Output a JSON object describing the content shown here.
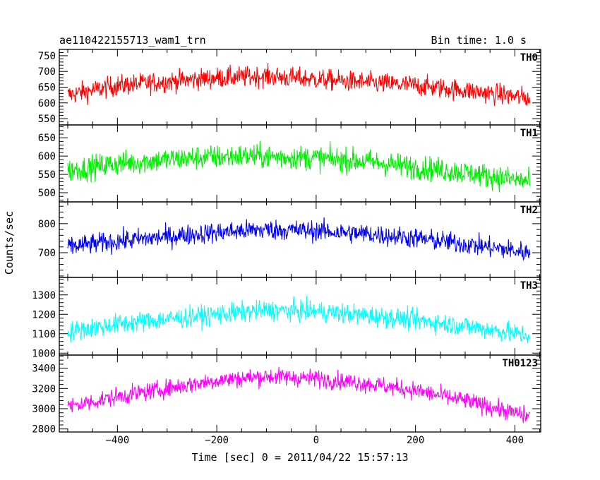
{
  "header": {
    "left": "ae110422155713_wam1_trn",
    "right": "Bin time: 1.0 s"
  },
  "axes": {
    "xlabel": "Time [sec] 0 = 2011/04/22 15:57:13",
    "ylabel": "Counts/sec"
  },
  "chart_data": {
    "type": "line",
    "x_range": [
      -500,
      430
    ],
    "xlim": [
      -517,
      452
    ],
    "x_ticks": [
      -400,
      -200,
      0,
      200,
      400
    ],
    "x_tick_labels": [
      "−400",
      "−200",
      "0",
      "200",
      "400"
    ],
    "bin_time_s": 1.0,
    "grid": false,
    "panels": [
      {
        "name": "TH0",
        "color": "#ff0000",
        "ylim": [
          530,
          770
        ],
        "y_ticks": [
          550,
          600,
          650,
          700,
          750
        ],
        "y_tick_labels": [
          "550",
          "600",
          "650",
          "700",
          "750"
        ],
        "trend": [
          [
            -500,
            625
          ],
          [
            -400,
            655
          ],
          [
            -200,
            680
          ],
          [
            -100,
            685
          ],
          [
            0,
            675
          ],
          [
            100,
            665
          ],
          [
            200,
            655
          ],
          [
            300,
            640
          ],
          [
            430,
            615
          ]
        ],
        "scatter": 27
      },
      {
        "name": "TH1",
        "color": "#00ee00",
        "ylim": [
          475,
          685
        ],
        "y_ticks": [
          500,
          550,
          600,
          650
        ],
        "y_tick_labels": [
          "500",
          "550",
          "600",
          "650"
        ],
        "trend": [
          [
            -500,
            560
          ],
          [
            -400,
            580
          ],
          [
            -250,
            595
          ],
          [
            -150,
            600
          ],
          [
            0,
            595
          ],
          [
            100,
            585
          ],
          [
            200,
            570
          ],
          [
            300,
            555
          ],
          [
            430,
            530
          ]
        ],
        "scatter": 27
      },
      {
        "name": "TH2",
        "color": "#0000ee",
        "ylim": [
          615,
          875
        ],
        "y_ticks": [
          700,
          800
        ],
        "y_tick_labels": [
          "700",
          "800"
        ],
        "trend": [
          [
            -500,
            720
          ],
          [
            -400,
            740
          ],
          [
            -200,
            770
          ],
          [
            -100,
            780
          ],
          [
            0,
            775
          ],
          [
            100,
            765
          ],
          [
            200,
            750
          ],
          [
            300,
            730
          ],
          [
            430,
            700
          ]
        ],
        "scatter": 29
      },
      {
        "name": "TH3",
        "color": "#00ffff",
        "ylim": [
          990,
          1390
        ],
        "y_ticks": [
          1000,
          1100,
          1200,
          1300
        ],
        "y_tick_labels": [
          "1000",
          "1100",
          "1200",
          "1300"
        ],
        "trend": [
          [
            -500,
            1110
          ],
          [
            -400,
            1150
          ],
          [
            -200,
            1200
          ],
          [
            -100,
            1220
          ],
          [
            0,
            1215
          ],
          [
            100,
            1195
          ],
          [
            200,
            1170
          ],
          [
            300,
            1140
          ],
          [
            430,
            1090
          ]
        ],
        "scatter": 43
      },
      {
        "name": "TH0123",
        "color": "#ff00ff",
        "ylim": [
          2770,
          3530
        ],
        "y_ticks": [
          2800,
          3000,
          3200,
          3400
        ],
        "y_tick_labels": [
          "2800",
          "3000",
          "3200",
          "3400"
        ],
        "trend": [
          [
            -500,
            3020
          ],
          [
            -400,
            3120
          ],
          [
            -200,
            3280
          ],
          [
            -100,
            3320
          ],
          [
            0,
            3300
          ],
          [
            100,
            3250
          ],
          [
            200,
            3180
          ],
          [
            300,
            3080
          ],
          [
            430,
            2920
          ]
        ],
        "scatter": 72
      }
    ]
  }
}
